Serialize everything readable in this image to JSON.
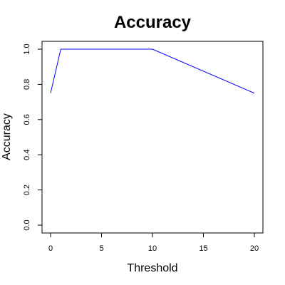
{
  "chart_data": {
    "type": "line",
    "title": "Accuracy",
    "xlabel": "Threshold",
    "ylabel": "Accuracy",
    "xlim": [
      0,
      20
    ],
    "ylim": [
      0,
      1
    ],
    "x_ticks": [
      0,
      5,
      10,
      15,
      20
    ],
    "y_ticks": [
      0.0,
      0.2,
      0.4,
      0.6,
      0.8,
      1.0
    ],
    "x_tick_labels": [
      "0",
      "5",
      "10",
      "15",
      "20"
    ],
    "y_tick_labels": [
      "0.0",
      "0.2",
      "0.4",
      "0.6",
      "0.8",
      "1.0"
    ],
    "grid": false,
    "series": [
      {
        "color": "#0000ff",
        "x": [
          0,
          1,
          10,
          20
        ],
        "y": [
          0.75,
          1.0,
          1.0,
          0.75
        ]
      }
    ]
  }
}
